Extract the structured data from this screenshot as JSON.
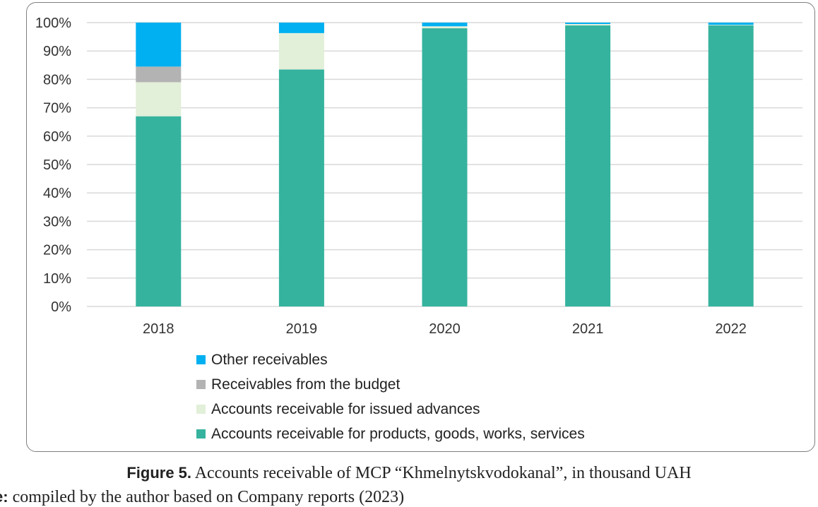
{
  "chart_data": {
    "type": "bar",
    "stacked": true,
    "percent": true,
    "categories": [
      "2018",
      "2019",
      "2020",
      "2021",
      "2022"
    ],
    "series": [
      {
        "name": "Accounts receivable for products, goods, works, services",
        "color": "#35b39e",
        "values": [
          67,
          83.5,
          98,
          99,
          99
        ]
      },
      {
        "name": "Accounts receivable for issued advances",
        "color": "#e2efd9",
        "values": [
          12,
          12.8,
          0.7,
          0.5,
          0.2
        ]
      },
      {
        "name": "Receivables from the budget",
        "color": "#b3b3b3",
        "values": [
          5.5,
          0,
          0,
          0,
          0
        ]
      },
      {
        "name": "Other receivables",
        "color": "#00b0f0",
        "values": [
          15.5,
          3.7,
          1.3,
          0.5,
          0.8
        ]
      }
    ],
    "y_ticks": [
      "0%",
      "10%",
      "20%",
      "30%",
      "40%",
      "50%",
      "60%",
      "70%",
      "80%",
      "90%",
      "100%"
    ],
    "ylim": [
      0,
      100
    ],
    "grid": true,
    "legend_position": "bottom"
  },
  "legend": [
    {
      "label": "Other receivables",
      "color": "#00b0f0"
    },
    {
      "label": "Receivables from the budget",
      "color": "#b3b3b3"
    },
    {
      "label": "Accounts receivable for issued advances",
      "color": "#e2efd9"
    },
    {
      "label": "Accounts receivable for products, goods, works, services",
      "color": "#35b39e"
    }
  ],
  "caption": {
    "label": "Figure 5.",
    "text": " Accounts receivable of MCP “Khmelnytskvodokanal”, in thousand UAH"
  },
  "source": {
    "label": "e:",
    "text": " compiled by the author based on Company reports (2023)"
  }
}
